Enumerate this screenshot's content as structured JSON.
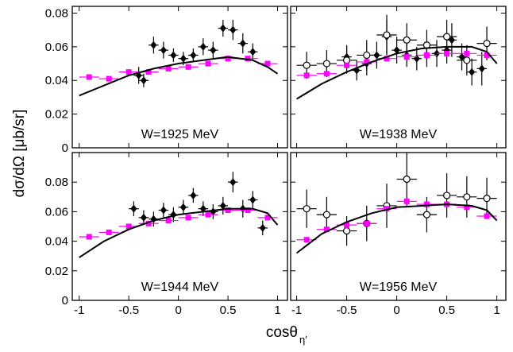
{
  "y_label": "dσ/dΩ [μb/sr]",
  "x_label": "cosθ",
  "x_label_sub": "η′",
  "chart_data": [
    {
      "type": "scatter",
      "annotation": "W=1925 MeV",
      "xlim": [
        -1.07,
        1.1
      ],
      "ylim": [
        0,
        0.084
      ],
      "xticks": [
        -1,
        -0.5,
        0,
        0.5,
        1
      ],
      "yticks": [
        0,
        0.02,
        0.04,
        0.06,
        0.08
      ],
      "show_xticklabels": false,
      "show_yticklabels": true,
      "series": [
        {
          "marker": "filled",
          "color": "#000000",
          "xerr": 0.05,
          "x": [
            -0.4,
            -0.35,
            -0.25,
            -0.15,
            -0.05,
            0.05,
            0.15,
            0.25,
            0.35,
            0.45,
            0.55,
            0.65,
            0.75
          ],
          "values": [
            0.043,
            0.04,
            0.061,
            0.058,
            0.055,
            0.053,
            0.055,
            0.06,
            0.058,
            0.071,
            0.07,
            0.062,
            0.057
          ],
          "errors": [
            0.005,
            0.004,
            0.005,
            0.005,
            0.004,
            0.004,
            0.004,
            0.005,
            0.005,
            0.005,
            0.006,
            0.006,
            0.005
          ]
        },
        {
          "marker": "square",
          "color": "#ff00ff",
          "xerr": 0.1,
          "x": [
            -0.9,
            -0.7,
            -0.5,
            -0.3,
            -0.1,
            0.1,
            0.3,
            0.5,
            0.7,
            0.9
          ],
          "values": [
            0.042,
            0.041,
            0.045,
            0.045,
            0.047,
            0.048,
            0.05,
            0.053,
            0.053,
            0.05
          ],
          "errors": [
            0.001,
            0.001,
            0.001,
            0.001,
            0.001,
            0.001,
            0.001,
            0.001,
            0.001,
            0.001
          ]
        },
        {
          "marker": "line",
          "color": "#000000",
          "x": [
            -1,
            -0.75,
            -0.5,
            -0.25,
            0,
            0.25,
            0.5,
            0.75,
            0.9,
            1
          ],
          "values": [
            0.031,
            0.037,
            0.043,
            0.047,
            0.05,
            0.052,
            0.054,
            0.052,
            0.048,
            0.044
          ]
        }
      ]
    },
    {
      "type": "scatter",
      "annotation": "W=1938 MeV",
      "xlim": [
        -1.06,
        1.09
      ],
      "ylim": [
        0,
        0.084
      ],
      "xticks": [
        -1,
        -0.5,
        0,
        0.5,
        1
      ],
      "yticks": [
        0,
        0.02,
        0.04,
        0.06,
        0.08
      ],
      "show_xticklabels": false,
      "show_yticklabels": false,
      "series": [
        {
          "marker": "filled",
          "color": "#000000",
          "xerr": 0.05,
          "x": [
            -0.5,
            -0.4,
            -0.3,
            -0.2,
            -0.1,
            0,
            0.1,
            0.2,
            0.3,
            0.4,
            0.5,
            0.55,
            0.65,
            0.75,
            0.85
          ],
          "values": [
            0.054,
            0.046,
            0.05,
            0.055,
            0.066,
            0.058,
            0.055,
            0.053,
            0.055,
            0.056,
            0.058,
            0.064,
            0.054,
            0.045,
            0.047
          ],
          "errors": [
            0.007,
            0.006,
            0.007,
            0.008,
            0.01,
            0.008,
            0.007,
            0.007,
            0.007,
            0.008,
            0.008,
            0.01,
            0.008,
            0.008,
            0.01
          ]
        },
        {
          "marker": "open",
          "color": "#000000",
          "xerr": 0.1,
          "x": [
            -0.9,
            -0.7,
            -0.5,
            -0.3,
            -0.1,
            0.1,
            0.3,
            0.5,
            0.7,
            0.9
          ],
          "values": [
            0.049,
            0.05,
            0.052,
            0.055,
            0.067,
            0.064,
            0.061,
            0.066,
            0.052,
            0.062
          ],
          "errors": [
            0.008,
            0.008,
            0.008,
            0.009,
            0.012,
            0.01,
            0.009,
            0.01,
            0.009,
            0.01
          ]
        },
        {
          "marker": "square",
          "color": "#ff00ff",
          "xerr": 0.1,
          "x": [
            -0.9,
            -0.7,
            -0.5,
            -0.3,
            -0.1,
            0.1,
            0.3,
            0.5,
            0.7,
            0.9
          ],
          "values": [
            0.043,
            0.044,
            0.049,
            0.051,
            0.053,
            0.054,
            0.055,
            0.056,
            0.056,
            0.055
          ],
          "errors": [
            0.001,
            0.001,
            0.001,
            0.001,
            0.001,
            0.001,
            0.001,
            0.001,
            0.001,
            0.001
          ]
        },
        {
          "marker": "line",
          "color": "#000000",
          "x": [
            -1,
            -0.75,
            -0.5,
            -0.25,
            0,
            0.25,
            0.5,
            0.75,
            0.9,
            1
          ],
          "values": [
            0.029,
            0.038,
            0.045,
            0.051,
            0.056,
            0.059,
            0.06,
            0.06,
            0.057,
            0.05
          ]
        }
      ]
    },
    {
      "type": "scatter",
      "annotation": "W=1944 MeV",
      "xlim": [
        -1.07,
        1.1
      ],
      "ylim": [
        0,
        0.1
      ],
      "xticks": [
        -1,
        -0.5,
        0,
        0.5,
        1
      ],
      "yticks": [
        0,
        0.02,
        0.04,
        0.06,
        0.08
      ],
      "show_xticklabels": true,
      "show_yticklabels": true,
      "series": [
        {
          "marker": "filled",
          "color": "#000000",
          "xerr": 0.05,
          "x": [
            -0.45,
            -0.35,
            -0.25,
            -0.15,
            -0.05,
            0.05,
            0.15,
            0.25,
            0.35,
            0.45,
            0.55,
            0.65,
            0.75,
            0.85
          ],
          "values": [
            0.062,
            0.056,
            0.055,
            0.061,
            0.058,
            0.063,
            0.071,
            0.062,
            0.06,
            0.064,
            0.08,
            0.062,
            0.068,
            0.049
          ],
          "errors": [
            0.005,
            0.005,
            0.005,
            0.005,
            0.005,
            0.005,
            0.005,
            0.005,
            0.005,
            0.006,
            0.007,
            0.006,
            0.006,
            0.005
          ]
        },
        {
          "marker": "square",
          "color": "#ff00ff",
          "xerr": 0.1,
          "x": [
            -0.9,
            -0.7,
            -0.5,
            -0.3,
            -0.1,
            0.1,
            0.3,
            0.5,
            0.7,
            0.9
          ],
          "values": [
            0.043,
            0.046,
            0.05,
            0.052,
            0.054,
            0.056,
            0.058,
            0.061,
            0.061,
            0.056
          ],
          "errors": [
            0.001,
            0.001,
            0.001,
            0.001,
            0.001,
            0.001,
            0.001,
            0.001,
            0.001,
            0.001
          ]
        },
        {
          "marker": "line",
          "color": "#000000",
          "x": [
            -1,
            -0.75,
            -0.5,
            -0.25,
            0,
            0.25,
            0.5,
            0.75,
            0.9,
            1
          ],
          "values": [
            0.029,
            0.04,
            0.048,
            0.054,
            0.058,
            0.06,
            0.062,
            0.062,
            0.059,
            0.051
          ]
        }
      ]
    },
    {
      "type": "scatter",
      "annotation": "W=1956 MeV",
      "xlim": [
        -1.06,
        1.09
      ],
      "ylim": [
        0,
        0.1
      ],
      "xticks": [
        -1,
        -0.5,
        0,
        0.5,
        1
      ],
      "yticks": [
        0,
        0.02,
        0.04,
        0.06,
        0.08
      ],
      "show_xticklabels": true,
      "show_yticklabels": false,
      "series": [
        {
          "marker": "open",
          "color": "#000000",
          "xerr": 0.1,
          "x": [
            -0.9,
            -0.7,
            -0.5,
            -0.3,
            -0.1,
            0.1,
            0.3,
            0.5,
            0.7,
            0.9
          ],
          "values": [
            0.062,
            0.058,
            0.047,
            0.052,
            0.064,
            0.082,
            0.058,
            0.071,
            0.07,
            0.069
          ],
          "errors": [
            0.013,
            0.012,
            0.01,
            0.012,
            0.015,
            0.018,
            0.012,
            0.015,
            0.014,
            0.014
          ]
        },
        {
          "marker": "square",
          "color": "#ff00ff",
          "xerr": 0.1,
          "x": [
            -0.9,
            -0.7,
            -0.5,
            -0.3,
            -0.1,
            0.1,
            0.3,
            0.5,
            0.7,
            0.9
          ],
          "values": [
            0.041,
            0.048,
            0.051,
            0.052,
            0.062,
            0.067,
            0.065,
            0.065,
            0.063,
            0.057
          ],
          "errors": [
            0.001,
            0.001,
            0.001,
            0.001,
            0.001,
            0.001,
            0.001,
            0.001,
            0.001,
            0.001
          ]
        },
        {
          "marker": "line",
          "color": "#000000",
          "x": [
            -1,
            -0.75,
            -0.5,
            -0.25,
            0,
            0.25,
            0.5,
            0.75,
            0.9,
            1
          ],
          "values": [
            0.032,
            0.045,
            0.053,
            0.059,
            0.063,
            0.064,
            0.065,
            0.064,
            0.061,
            0.054
          ]
        }
      ]
    }
  ]
}
